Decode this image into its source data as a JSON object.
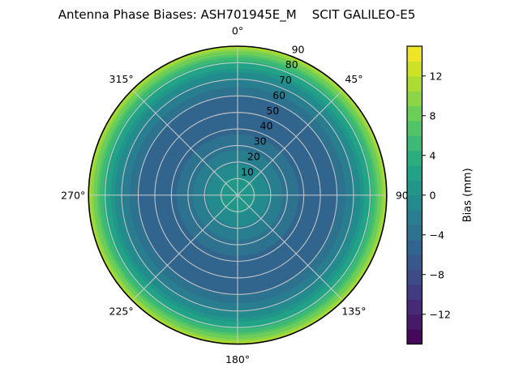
{
  "title": "Antenna Phase Biases: ASH701945E_M    SCIT GALILEO-E5",
  "chart_data": {
    "type": "heatmap",
    "projection": "polar",
    "title": "Antenna Phase Biases: ASH701945E_M    SCIT GALILEO-E5",
    "angle_labels": [
      "0°",
      "45°",
      "90",
      "135°",
      "180°",
      "225°",
      "270°",
      "315°"
    ],
    "angle_degrees": [
      0,
      45,
      90,
      135,
      180,
      225,
      270,
      315
    ],
    "radial_ticks": [
      10,
      20,
      30,
      40,
      50,
      60,
      70,
      80,
      90
    ],
    "radial_tick_angle_deg": 22.5,
    "radial_max": 90,
    "radial_profile": {
      "zenith_deg": [
        0,
        10,
        20,
        30,
        40,
        50,
        60,
        70,
        75,
        80,
        85,
        90
      ],
      "bias_mm": [
        1.5,
        0.3,
        -1.8,
        -3.6,
        -5.0,
        -5.4,
        -4.5,
        -1.8,
        0.4,
        3.4,
        7.4,
        12.0
      ]
    },
    "colorbar": {
      "label": "Bias (mm)",
      "ticks": [
        12,
        8,
        4,
        0,
        -4,
        -8,
        -12
      ],
      "tick_labels": [
        "12",
        "8",
        "4",
        "0",
        "−4",
        "−8",
        "−12"
      ],
      "vmin": -15,
      "vmax": 15,
      "level_step": 1.5
    },
    "colormap": {
      "name": "viridis",
      "anchors": [
        "#440154",
        "#482173",
        "#414487",
        "#355f8d",
        "#2a788e",
        "#21918c",
        "#22a884",
        "#44bf70",
        "#7ad151",
        "#bddf26",
        "#fde725"
      ]
    },
    "grid": {
      "color": "#cccccc",
      "ring_step": 10,
      "spoke_step_deg": 45
    },
    "colors": {
      "background": "#ffffff",
      "text": "#000000",
      "outline": "#000000"
    }
  }
}
